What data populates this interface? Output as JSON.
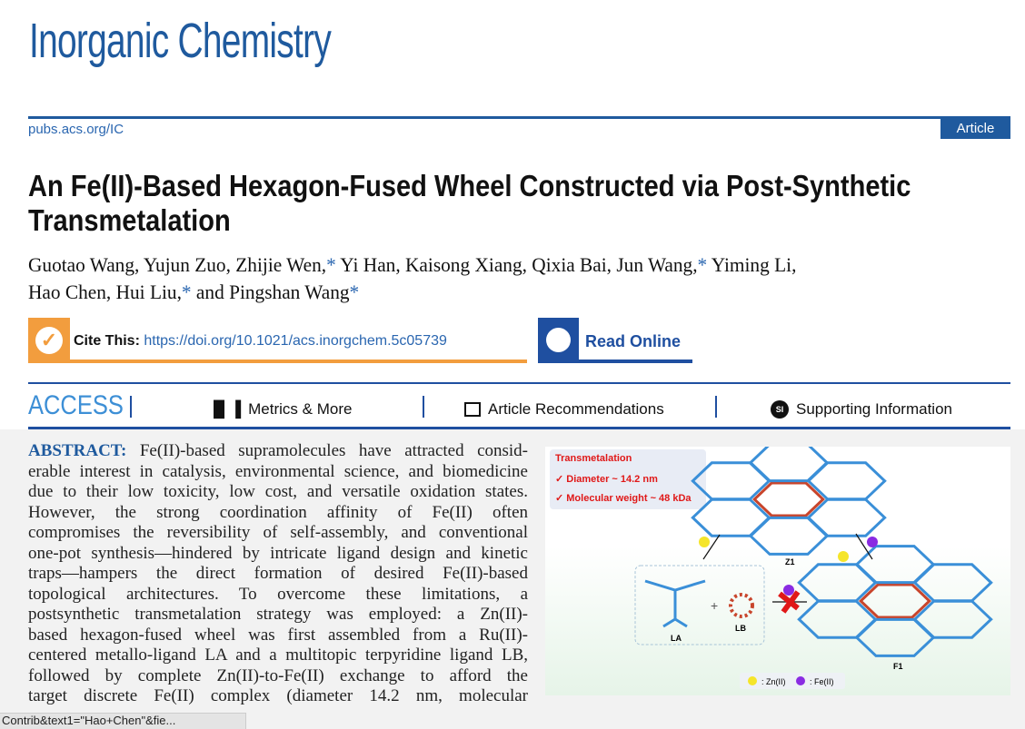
{
  "journal": {
    "name": "Inorganic Chemistry",
    "url": "pubs.acs.org/IC",
    "type": "Article"
  },
  "article": {
    "title": "An Fe(II)-Based Hexagon-Fused Wheel Constructed via Post-Synthetic Transmetalation",
    "authors": [
      "Guotao Wang",
      "Yujun Zuo",
      "Zhijie Wen,*",
      "Yi Han",
      "Kaisong Xiang",
      "Qixia Bai",
      "Jun Wang,*",
      "Yiming Li",
      "Hao Chen",
      "Hui Liu,*",
      "and Pingshan Wang*"
    ],
    "author_lines": [
      [
        "Guotao Wang, Yujun Zuo, Zhijie Wen,",
        "*",
        " Yi Han, Kaisong Xiang, Qixia Bai, Jun Wang,",
        "*",
        " Yiming Li,"
      ],
      [
        "Hao Chen, Hui Liu,",
        "*",
        " and Pingshan Wang",
        "*"
      ]
    ],
    "cite_label": "Cite This:",
    "doi": "https://doi.org/10.1021/acs.inorgchem.5c05739",
    "read_online": "Read Online"
  },
  "access": {
    "label": "ACCESS",
    "tabs": [
      "Metrics & More",
      "Article Recommendations",
      "Supporting Information"
    ],
    "si_badge": "SI"
  },
  "abstract": {
    "label": "ABSTRACT:",
    "lines": [
      "Fe(II)-based supramolecules have attracted consid-",
      "erable interest in catalysis, environmental science, and biomedicine",
      "due to their low toxicity, low cost, and versatile oxidation states.",
      "However, the strong coordination affinity of Fe(II) often",
      "compromises the reversibility of self-assembly, and conventional",
      "one-pot synthesis—hindered by intricate ligand design and kinetic",
      "traps—hampers the direct formation of desired Fe(II)-based",
      "topological architectures. To overcome these limitations, a",
      "postsynthetic transmetalation strategy was employed: a Zn(II)-",
      "based hexagon-fused wheel was first assembled from a Ru(II)-",
      "centered metallo-ligand LA and a multitopic terpyridine ligand LB,",
      "followed by complete Zn(II)-to-Fe(II) exchange to afford the",
      "target discrete Fe(II) complex (diameter 14.2 nm, molecular"
    ]
  },
  "toc_graphic": {
    "box_title": "Transmetalation",
    "bullets": [
      "✓ Diameter ~ 14.2 nm",
      "✓ Molecular weight ~ 48 kDa"
    ],
    "labels": {
      "z1": "Z1",
      "f1": "F1",
      "la": "LA",
      "lb": "LB",
      "plus": "+"
    },
    "legend": [
      ": Zn(II)",
      ": Fe(II)"
    ],
    "colors": {
      "zn": "#f5e52a",
      "fe": "#8a2be2",
      "ligand": "#3a8fd8",
      "core": "#c8452c"
    }
  },
  "status_bar": {
    "text": "Contrib&text1=\"Hao+Chen\"&fie..."
  }
}
